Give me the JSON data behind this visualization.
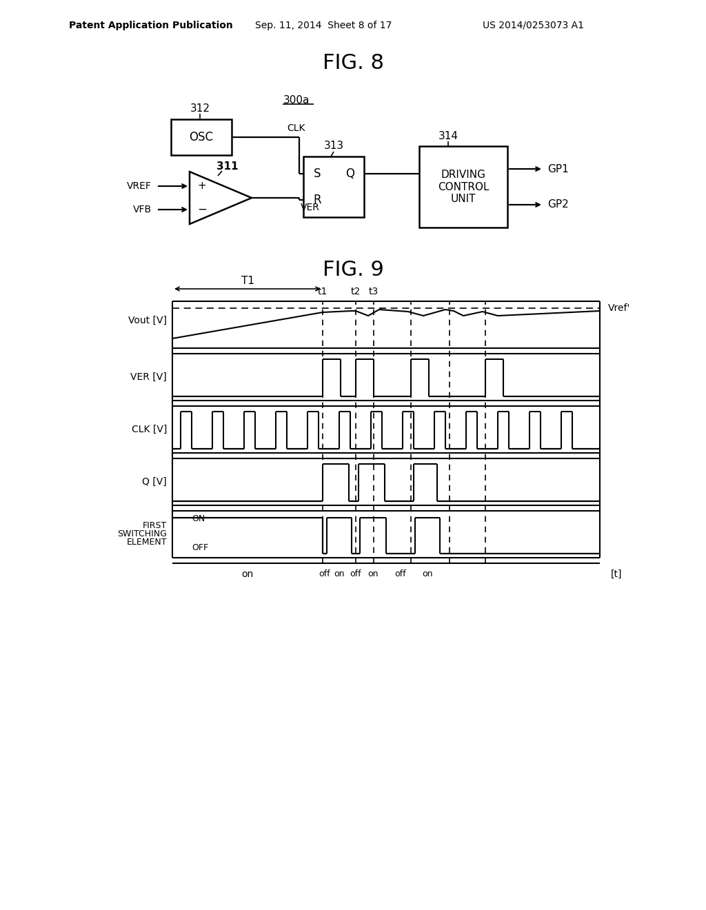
{
  "bg_color": "#ffffff",
  "header_left": "Patent Application Publication",
  "header_center": "Sep. 11, 2014  Sheet 8 of 17",
  "header_right": "US 2014/0253073 A1",
  "fig8_title": "FIG. 8",
  "fig9_title": "FIG. 9",
  "label_300a": "300a",
  "label_312": "312",
  "label_311": "311",
  "label_313": "313",
  "label_314": "314",
  "label_OSC": "OSC",
  "label_CLK": "CLK",
  "label_VER": "VER",
  "label_S": "S",
  "label_R": "R",
  "label_Q_sr": "Q",
  "label_VREF": "VREF",
  "label_VFB": "VFB",
  "label_GP1": "GP1",
  "label_GP2": "GP2",
  "label_DRIVING_CONTROL_UNIT": "DRIVING\nCONTROL\nUNIT",
  "label_T1": "T1",
  "label_t1": "t1",
  "label_t2": "t2",
  "label_t3": "t3",
  "label_Vref_prime": "Vref'",
  "label_Vout": "Vout [V]",
  "label_VER_plot": "VER [V]",
  "label_CLK_plot": "CLK [V]",
  "label_Q_plot": "Q [V]",
  "label_ON": "ON",
  "label_OFF": "OFF",
  "label_t_unit": "[t]",
  "label_on": "on"
}
